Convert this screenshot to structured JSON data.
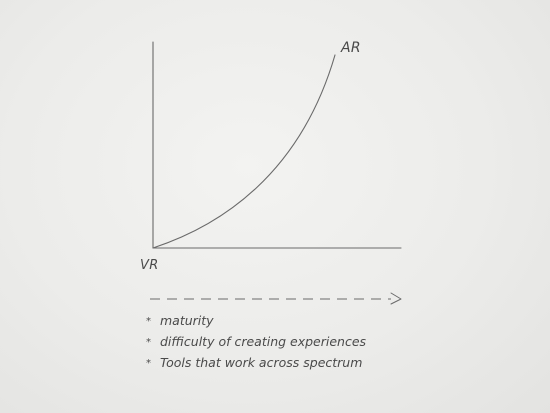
{
  "diagram": {
    "curve_end_label": "AR",
    "origin_label": "VR"
  },
  "notes": {
    "bullet_glyph": "*",
    "items": [
      "maturity",
      "difficulty of creating experiences",
      "Tools that work across spectrum"
    ]
  },
  "colors": {
    "ink": "#5a5a5a",
    "paper": "#ececea"
  }
}
